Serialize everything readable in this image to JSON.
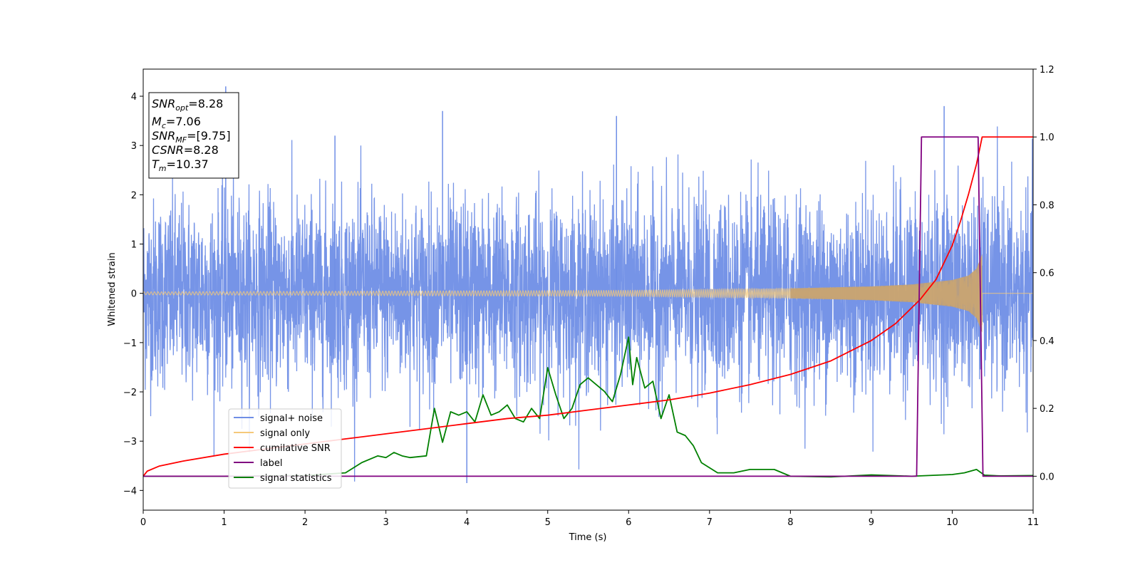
{
  "chart_data": {
    "type": "line",
    "xlabel": "Time (s)",
    "ylabel": "Whitened strain",
    "xlim": [
      0,
      11
    ],
    "ylim_left": [
      -4.4,
      4.55
    ],
    "ylim_right": [
      -0.1,
      1.2
    ],
    "x_ticks": [
      "0",
      "1",
      "2",
      "3",
      "4",
      "5",
      "6",
      "7",
      "8",
      "9",
      "10",
      "11"
    ],
    "y_ticks_left": [
      "4",
      "3",
      "2",
      "1",
      "0",
      "−1",
      "−2",
      "−3",
      "−4"
    ],
    "y_ticks_right": [
      "1.2",
      "1.0",
      "0.8",
      "0.6",
      "0.4",
      "0.2",
      "0.0"
    ],
    "legend_position": "lower-left",
    "series": [
      {
        "name": "signal+ noise",
        "axis": "left",
        "color": "#6f8ee6",
        "style": "dense noise, roughly +/-2.5 with spikes to about +/-3.8",
        "x": [
          0.0,
          1.02,
          2.37,
          3.7,
          4.0,
          5.85,
          9.9
        ],
        "y": [
          0.0,
          4.2,
          3.2,
          3.7,
          -3.85,
          3.6,
          3.8
        ]
      },
      {
        "name": "signal only",
        "axis": "left",
        "color": "#f5c97a",
        "style": "chirp envelope around 0, ends at merger time",
        "x": [
          0,
          2,
          4,
          6,
          8,
          9,
          9.5,
          10,
          10.2,
          10.3,
          10.37,
          11
        ],
        "envelope": [
          0.03,
          0.04,
          0.05,
          0.06,
          0.1,
          0.14,
          0.18,
          0.27,
          0.36,
          0.5,
          0.8,
          0.0
        ]
      },
      {
        "name": "cumilative SNR",
        "axis": "right",
        "color": "#ff0000",
        "x": [
          0,
          0.05,
          0.2,
          0.5,
          1,
          1.5,
          2,
          2.5,
          3,
          3.5,
          4,
          4.5,
          5,
          5.5,
          6,
          6.5,
          7,
          7.5,
          8,
          8.5,
          9,
          9.3,
          9.6,
          9.8,
          10,
          10.1,
          10.2,
          10.3,
          10.37,
          11
        ],
        "y": [
          0.0,
          0.015,
          0.03,
          0.045,
          0.065,
          0.08,
          0.095,
          0.11,
          0.125,
          0.14,
          0.155,
          0.17,
          0.18,
          0.195,
          0.21,
          0.225,
          0.245,
          0.27,
          0.3,
          0.34,
          0.4,
          0.45,
          0.52,
          0.58,
          0.68,
          0.75,
          0.83,
          0.92,
          1.0,
          1.0
        ]
      },
      {
        "name": "label",
        "axis": "right",
        "color": "#800080",
        "x": [
          0,
          9.56,
          9.62,
          10.32,
          10.38,
          11
        ],
        "y": [
          0,
          0,
          1,
          1,
          0,
          0
        ]
      },
      {
        "name": "signal statistics",
        "axis": "right",
        "color": "#008000",
        "x": [
          0,
          1,
          2,
          2.5,
          2.7,
          2.9,
          3.0,
          3.1,
          3.2,
          3.3,
          3.5,
          3.6,
          3.7,
          3.8,
          3.9,
          4.0,
          4.1,
          4.2,
          4.3,
          4.4,
          4.5,
          4.6,
          4.7,
          4.8,
          4.9,
          5.0,
          5.1,
          5.2,
          5.3,
          5.4,
          5.5,
          5.6,
          5.7,
          5.8,
          5.9,
          6.0,
          6.05,
          6.1,
          6.2,
          6.3,
          6.4,
          6.5,
          6.6,
          6.7,
          6.8,
          6.9,
          7.0,
          7.1,
          7.3,
          7.5,
          7.8,
          8.0,
          8.5,
          9.0,
          9.5,
          10.0,
          10.15,
          10.3,
          10.4,
          10.6,
          11
        ],
        "y": [
          0.0,
          0.0,
          0.002,
          0.01,
          0.04,
          0.06,
          0.055,
          0.07,
          0.06,
          0.055,
          0.06,
          0.2,
          0.1,
          0.19,
          0.18,
          0.19,
          0.16,
          0.24,
          0.18,
          0.19,
          0.21,
          0.17,
          0.16,
          0.2,
          0.17,
          0.32,
          0.24,
          0.17,
          0.2,
          0.27,
          0.29,
          0.27,
          0.25,
          0.22,
          0.3,
          0.41,
          0.27,
          0.35,
          0.26,
          0.28,
          0.17,
          0.24,
          0.13,
          0.12,
          0.09,
          0.04,
          0.025,
          0.01,
          0.01,
          0.02,
          0.02,
          0.0,
          -0.002,
          0.004,
          0.0,
          0.005,
          0.01,
          0.02,
          0.003,
          0.001,
          0.002
        ]
      }
    ],
    "annotation_lines": [
      {
        "main": "SNR",
        "sub": "opt",
        "rest": "=8.28"
      },
      {
        "main": "M",
        "sub": "c",
        "rest": "=7.06"
      },
      {
        "main": "SNR",
        "sub": "MF",
        "rest": "=[9.75]"
      },
      {
        "main": "CSNR",
        "sub": "",
        "rest": "=8.28"
      },
      {
        "main": "T",
        "sub": "m",
        "rest": "=10.37"
      }
    ]
  }
}
